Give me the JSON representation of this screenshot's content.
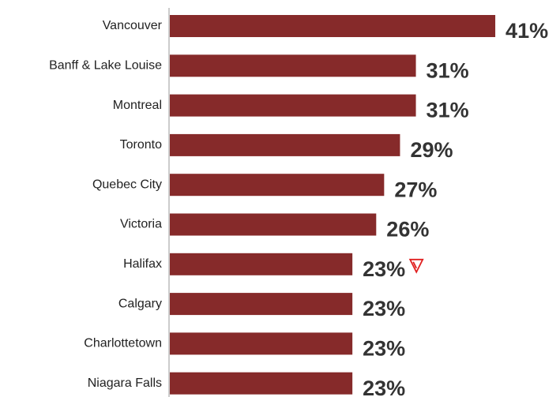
{
  "chart_data": {
    "type": "bar",
    "orientation": "horizontal",
    "categories": [
      "Vancouver",
      "Banff & Lake Louise",
      "Montreal",
      "Toronto",
      "Quebec City",
      "Victoria",
      "Halifax",
      "Calgary",
      "Charlottetown",
      "Niagara Falls"
    ],
    "values": [
      41,
      31,
      31,
      29,
      27,
      26,
      23,
      23,
      23,
      23
    ],
    "value_labels": [
      "41%",
      "31%",
      "31%",
      "29%",
      "27%",
      "26%",
      "23%",
      "23%",
      "23%",
      "23%"
    ],
    "color": "#862a2a"
  }
}
